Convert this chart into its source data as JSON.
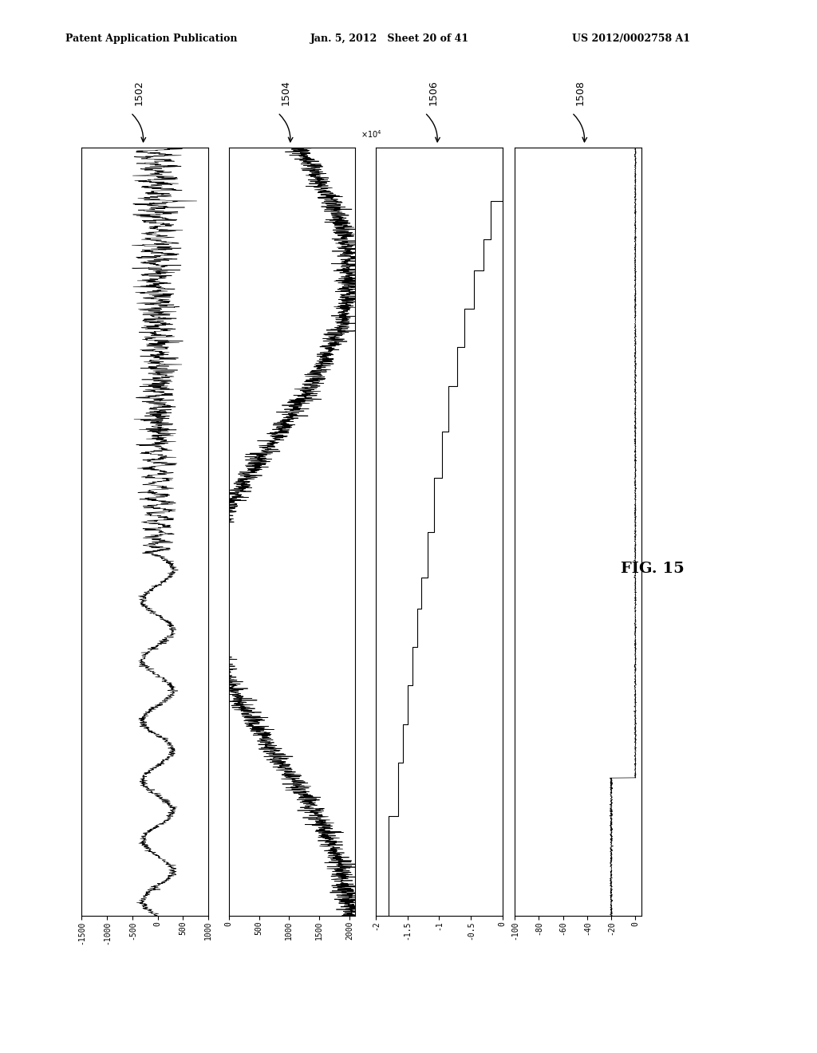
{
  "header_left": "Patent Application Publication",
  "header_mid": "Jan. 5, 2012   Sheet 20 of 41",
  "header_right": "US 2012/0002758 A1",
  "fig_label": "FIG. 15",
  "labels": [
    "1502",
    "1504",
    "1506",
    "1508"
  ],
  "plot1_yticks": [
    1000,
    500,
    0,
    -500,
    -1000,
    -1500
  ],
  "plot1_yticklabels": [
    "1000",
    "500",
    "0",
    "-500",
    "-1000",
    "-1500"
  ],
  "plot2_yticks": [
    2000,
    1500,
    1000,
    500,
    0
  ],
  "plot2_yticklabels": [
    "2000",
    "1500",
    "1000",
    "500",
    "0"
  ],
  "plot3_yticks": [
    0,
    -0.5,
    -1,
    -1.5,
    -2
  ],
  "plot3_yticklabels": [
    "0",
    "-0.5",
    "-1",
    "-1.5",
    "-2"
  ],
  "plot4_yticks": [
    0,
    -20,
    -40,
    -60,
    -80,
    -100
  ],
  "plot4_yticklabels": [
    "0",
    "-20",
    "-40",
    "-60",
    "-80",
    "-100"
  ],
  "bg_color": "#ffffff",
  "line_color": "#000000"
}
